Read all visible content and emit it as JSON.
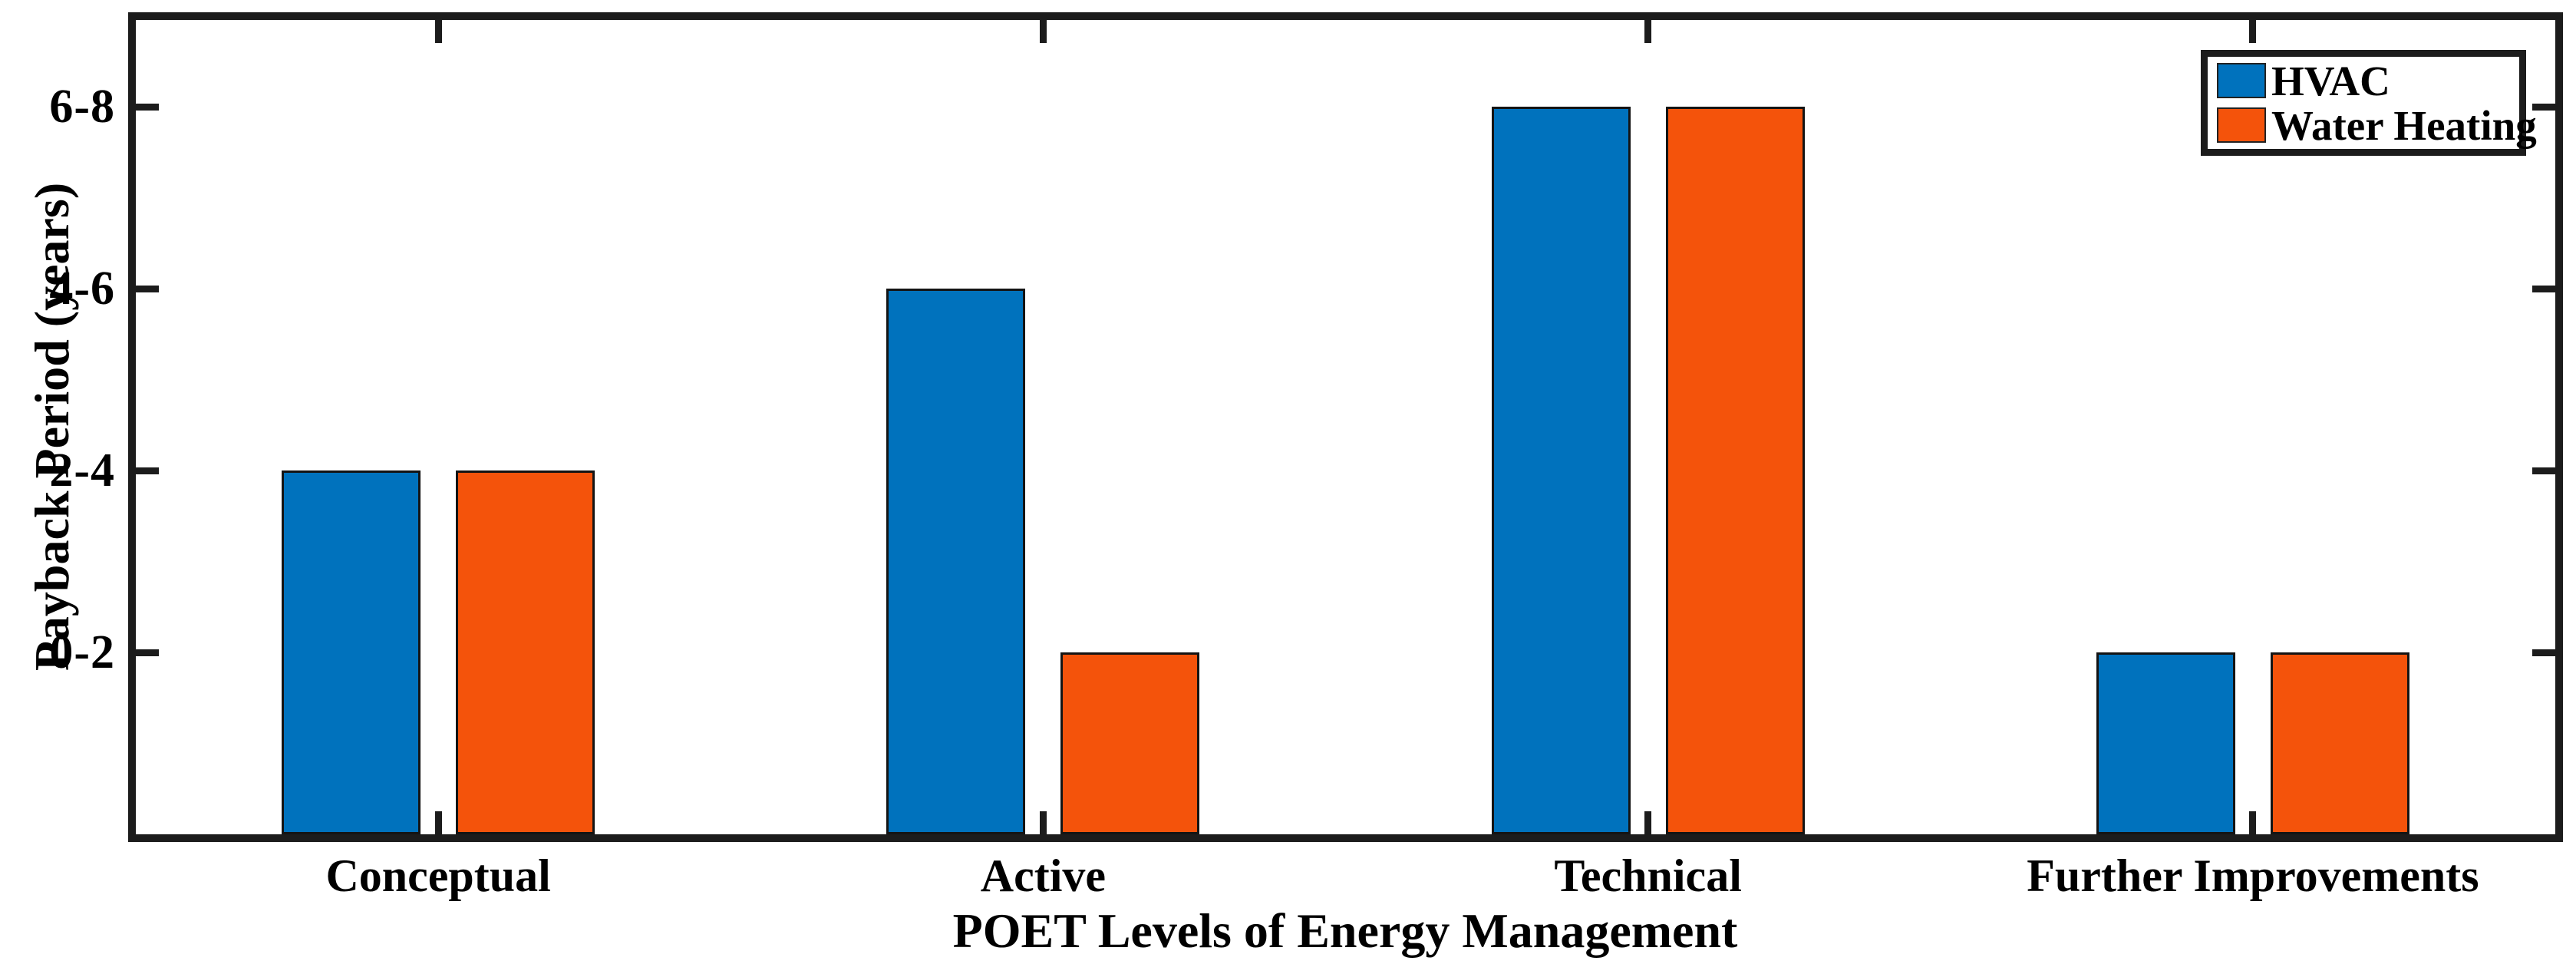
{
  "figure": {
    "background": "#ffffff",
    "ink_color": "#1c1c1c"
  },
  "axis": {
    "ylabel": "Payback Period (years)",
    "xlabel": "POET Levels of Energy Management",
    "ytick_labels": [
      "0-2",
      "2-4",
      "4-6",
      "6-8"
    ]
  },
  "legend": {
    "items": [
      {
        "label": "HVAC",
        "color": "#0072BD"
      },
      {
        "label": "Water Heating",
        "color": "#F4530B"
      }
    ]
  },
  "chart_data": {
    "type": "bar",
    "title": "",
    "xlabel": "POET Levels of Energy Management",
    "ylabel": "Payback Period (years)",
    "categories": [
      "Conceptual",
      "Active",
      "Technical",
      "Further Improvements"
    ],
    "ytick_values": [
      1,
      2,
      3,
      4
    ],
    "ytick_labels": [
      "0-2",
      "2-4",
      "4-6",
      "6-8"
    ],
    "ylim": [
      0,
      4.47
    ],
    "grid": false,
    "legend_position": "top-right",
    "tick_direction": "in",
    "box": true,
    "series": [
      {
        "name": "HVAC",
        "color": "#0072BD",
        "values": [
          2,
          3,
          4,
          1
        ],
        "payback_ranges": [
          "2-4",
          "4-6",
          "6-8",
          "0-2"
        ]
      },
      {
        "name": "Water Heating",
        "color": "#F4530B",
        "values": [
          2,
          1,
          4,
          1
        ],
        "payback_ranges": [
          "2-4",
          "0-2",
          "6-8",
          "0-2"
        ]
      }
    ]
  }
}
